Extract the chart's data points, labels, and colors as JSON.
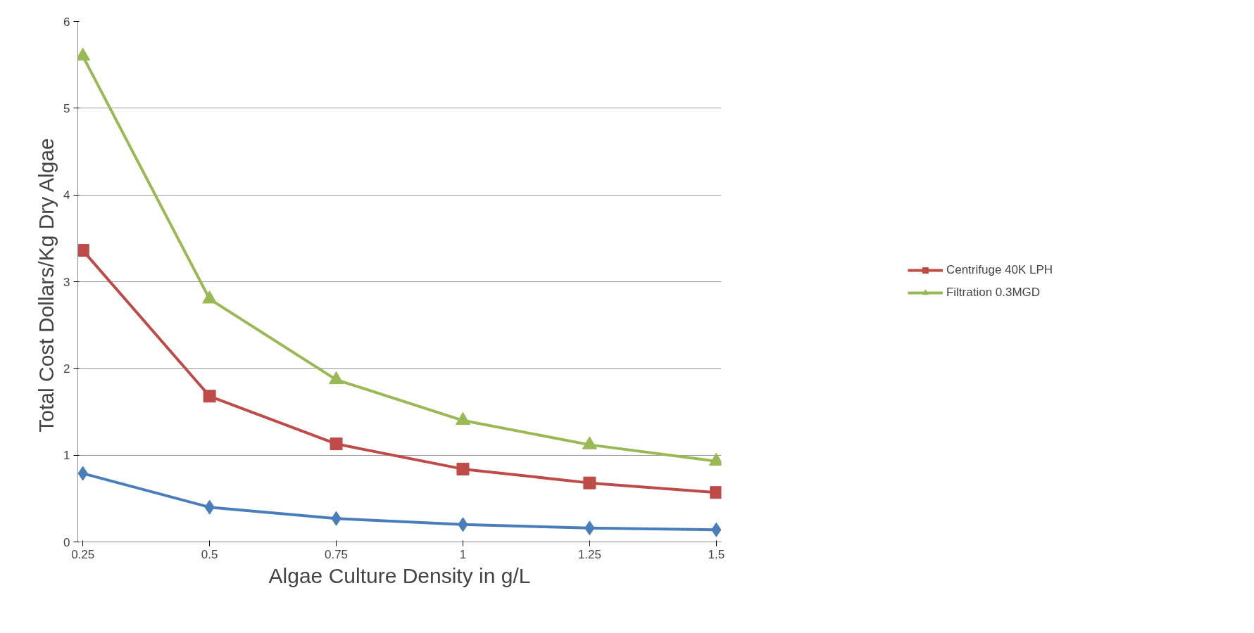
{
  "chart_data": {
    "type": "line",
    "xlabel": "Algae Culture Density in g/L",
    "ylabel": "Total  Cost Dollars/Kg Dry Algae",
    "categories": [
      "0.25",
      "0.5",
      "0.75",
      "1",
      "1.25",
      "1.5"
    ],
    "series": [
      {
        "color": "#4a7ebb",
        "marker": "diamond",
        "values": [
          0.79,
          0.4,
          0.27,
          0.2,
          0.16,
          0.14
        ]
      },
      {
        "name": "Centrifuge 40K LPH",
        "color": "#be4b48",
        "marker": "square",
        "values": [
          3.36,
          1.68,
          1.13,
          0.84,
          0.68,
          0.57
        ]
      },
      {
        "name": "Filtration 0.3MGD",
        "color": "#98b954",
        "marker": "triangle",
        "values": [
          5.6,
          2.8,
          1.87,
          1.4,
          1.12,
          0.93
        ]
      }
    ],
    "ylim": [
      0,
      6
    ],
    "yticks": [
      0,
      1,
      2,
      3,
      4,
      5,
      6
    ],
    "grid": "y",
    "legend": "right",
    "line_style": "solid"
  }
}
